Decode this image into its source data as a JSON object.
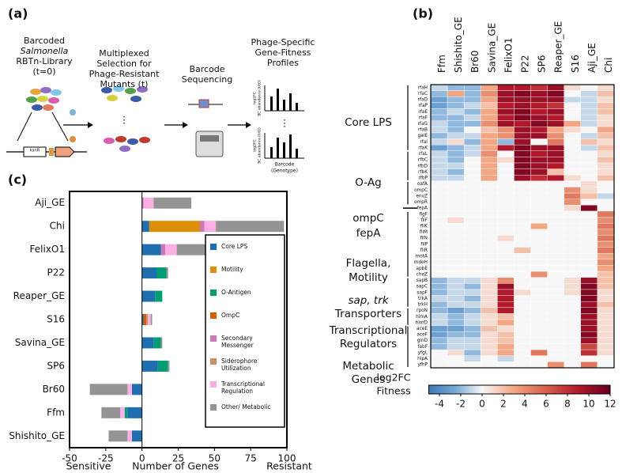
{
  "panel_a": {
    "panel_label": "(a)",
    "step1": [
      "Barcoded",
      "Salmonella",
      "RBTn-Library",
      "(t=0)"
    ],
    "step2": [
      "Multiplexed",
      "Selection for",
      "Phage-Resistant",
      "Mutants (t)"
    ],
    "step3": [
      "Barcode",
      "Sequencing"
    ],
    "step4": [
      "Phage-Specific",
      "Gene-Fitness",
      "Profiles"
    ],
    "plasmid_label": "kanR",
    "mini_axis": [
      "log2FC",
      "BC abundance (t/t0)"
    ],
    "ellipsis": "⋮",
    "mini_xlabel": [
      "Barcode",
      "(Genotype)"
    ]
  },
  "panel_b": {
    "panel_label": "(b)"
  },
  "panel_c": {
    "panel_label": "(c)"
  },
  "chart_data": [
    {
      "type": "heatmap",
      "x": [
        "Ffm",
        "Shishito_GE",
        "Br60",
        "Savina_GE",
        "FelixO1",
        "P22",
        "SP6",
        "Reaper_GE",
        "S16",
        "Aji_GE",
        "Chi"
      ],
      "y": [
        "rfaH",
        "rfaC",
        "rfaD",
        "rfaP",
        "rfaE",
        "rfaF",
        "rfaG",
        "rfaB",
        "galE",
        "rfaI",
        "rfaK",
        "rfaL",
        "rfbC",
        "rfbD",
        "rfbK",
        "rfbP",
        "oafA",
        "ompC",
        "envZ",
        "ompR",
        "fepA",
        "flgF",
        "fliF",
        "fliK",
        "fliM",
        "fliN",
        "fliP",
        "fliR",
        "motA",
        "mdoH",
        "apbE",
        "cheZ",
        "sapB",
        "sapC",
        "sapF",
        "trkA",
        "trkH",
        "rpoN",
        "himA",
        "himD",
        "aceE",
        "aceF",
        "glnD",
        "fabF",
        "yfgL",
        "hlpA",
        "yfhP"
      ],
      "values": [
        [
          -1,
          -2,
          -2,
          3,
          9,
          9,
          8,
          10,
          1,
          0,
          1
        ],
        [
          -2,
          3,
          -2,
          4,
          10,
          11,
          10,
          11,
          0,
          -1,
          2
        ],
        [
          -3,
          -2,
          -2,
          3,
          10,
          10,
          10,
          10,
          -1,
          -1,
          1
        ],
        [
          -3,
          -2,
          -1,
          2,
          9,
          10,
          9,
          8,
          0,
          -1,
          2
        ],
        [
          -2,
          -1,
          -2,
          3,
          10,
          11,
          9,
          10,
          0,
          -1,
          2
        ],
        [
          -2,
          -2,
          -1,
          3,
          9,
          11,
          10,
          9,
          0,
          -1,
          1
        ],
        [
          -1,
          -2,
          -2,
          4,
          10,
          9,
          11,
          10,
          3,
          -1,
          1
        ],
        [
          -1,
          -2,
          0,
          2,
          4,
          10,
          9,
          3,
          1,
          0,
          3
        ],
        [
          -2,
          -1,
          -1,
          3,
          4,
          10,
          10,
          4,
          0,
          -1,
          2
        ],
        [
          -1,
          1,
          -2,
          3,
          -2,
          10,
          0,
          5,
          0,
          2,
          1
        ],
        [
          -3,
          -2,
          -1,
          3,
          9,
          11,
          10,
          10,
          0,
          -1,
          2
        ],
        [
          -1,
          -2,
          -1,
          4,
          0,
          11,
          9,
          10,
          0,
          0,
          1
        ],
        [
          -1,
          -2,
          0,
          3,
          1,
          11,
          10,
          10,
          0,
          0,
          2
        ],
        [
          -1,
          -1,
          0,
          3,
          0,
          11,
          10,
          9,
          0,
          0,
          1
        ],
        [
          -1,
          -2,
          0,
          3,
          0,
          11,
          10,
          2,
          0,
          0,
          1
        ],
        [
          -1,
          -1,
          0,
          3,
          0,
          10,
          8,
          9,
          1,
          0,
          2
        ],
        [
          0,
          0,
          0,
          0,
          0,
          0,
          0,
          0,
          0,
          1,
          0
        ],
        [
          0,
          0,
          0,
          0,
          0,
          0,
          0,
          0,
          4,
          1,
          0
        ],
        [
          0,
          0,
          0,
          0,
          0,
          0,
          0,
          0,
          5,
          2,
          -1
        ],
        [
          0,
          0,
          0,
          0,
          0,
          0,
          0,
          0,
          4,
          0,
          0
        ],
        [
          0,
          0,
          0,
          0,
          0,
          0,
          0,
          0,
          1,
          11,
          0
        ],
        [
          0,
          0,
          0,
          0,
          0,
          0,
          0,
          0,
          0,
          0,
          5
        ],
        [
          0,
          1,
          0,
          0,
          0,
          0,
          0,
          0,
          0,
          0,
          4
        ],
        [
          0,
          0,
          0,
          0,
          0,
          0,
          3,
          0,
          0,
          0,
          5
        ],
        [
          0,
          0,
          0,
          0,
          0,
          0,
          0,
          0,
          0,
          0,
          4
        ],
        [
          0,
          0,
          0,
          0,
          1,
          0,
          0,
          0,
          0,
          0,
          5
        ],
        [
          0,
          0,
          0,
          0,
          0,
          0,
          0,
          0,
          0,
          0,
          4
        ],
        [
          0,
          0,
          0,
          0,
          0,
          2,
          0,
          0,
          0,
          0,
          5
        ],
        [
          0,
          0,
          0,
          0,
          0,
          0,
          0,
          0,
          0,
          0,
          3
        ],
        [
          0,
          0,
          0,
          0,
          0,
          0,
          0,
          0,
          0,
          0,
          4
        ],
        [
          0,
          0,
          0,
          0,
          0,
          0,
          0,
          0,
          0,
          0,
          3
        ],
        [
          0,
          0,
          0,
          0,
          0,
          0,
          4,
          0,
          0,
          0,
          2
        ],
        [
          -2,
          -1,
          -1,
          1,
          4,
          0,
          0,
          0,
          1,
          10,
          2
        ],
        [
          -2,
          -1,
          -2,
          1,
          10,
          0,
          0,
          0,
          1,
          11,
          2
        ],
        [
          -2,
          -1,
          -1,
          1,
          9,
          1,
          0,
          0,
          1,
          11,
          1
        ],
        [
          -1,
          -1,
          -2,
          1,
          9,
          0,
          0,
          0,
          0,
          11,
          1
        ],
        [
          -2,
          -1,
          -1,
          1,
          9,
          0,
          0,
          0,
          0,
          10,
          2
        ],
        [
          -2,
          -3,
          -2,
          2,
          9,
          0,
          0,
          0,
          0,
          11,
          1
        ],
        [
          -1,
          -2,
          -1,
          1,
          2,
          0,
          0,
          0,
          0,
          10,
          1
        ],
        [
          -1,
          -2,
          -1,
          1,
          3,
          0,
          0,
          0,
          0,
          10,
          1
        ],
        [
          -3,
          -3,
          -2,
          2,
          1,
          0,
          0,
          0,
          0,
          10,
          1
        ],
        [
          -3,
          -2,
          -2,
          1,
          2,
          0,
          0,
          0,
          0,
          11,
          1
        ],
        [
          -2,
          -1,
          -1,
          1,
          2,
          0,
          0,
          0,
          0,
          10,
          1
        ],
        [
          -2,
          -1,
          -1,
          1,
          3,
          0,
          0,
          0,
          0,
          7,
          1
        ],
        [
          0,
          1,
          -2,
          1,
          3,
          0,
          5,
          0,
          0,
          8,
          1
        ],
        [
          0,
          0,
          -1,
          0,
          -1,
          0,
          0,
          0,
          0,
          0,
          0
        ],
        [
          0,
          0,
          0,
          0,
          0,
          0,
          0,
          4,
          0,
          5,
          0
        ]
      ],
      "groups": [
        [
          "Core LPS"
        ],
        [
          "O-Ag"
        ],
        [
          "ompC"
        ],
        [
          "fepA"
        ],
        [
          "Flagella,",
          "Motility"
        ],
        [
          "sap, trk",
          "Transporters"
        ],
        [
          "Transcriptional",
          "Regulators"
        ],
        [
          "Metabolic",
          "Genes"
        ]
      ],
      "zlim": [
        -5,
        12
      ],
      "zticks": [
        -4,
        -2,
        0,
        2,
        4,
        6,
        8,
        10,
        12
      ],
      "colormap": "RdBu_r",
      "colorbar_label": [
        "log2FC",
        "Fitness"
      ]
    },
    {
      "type": "stacked_barh",
      "categories": [
        "Aji_GE",
        "Chi",
        "FelixO1",
        "P22",
        "Reaper_GE",
        "S16",
        "Savina_GE",
        "SP6",
        "Br60",
        "Ffm",
        "Shishito_GE"
      ],
      "series": [
        {
          "name": "Core LPS",
          "color": "#1f6fb0",
          "values": [
            0,
            5,
            13,
            10,
            9,
            1,
            8,
            11,
            -7,
            -10,
            -7
          ]
        },
        {
          "name": "Motility",
          "color": "#de8f05",
          "values": [
            0,
            35,
            0,
            0,
            0,
            0,
            0,
            0,
            0,
            0,
            0
          ]
        },
        {
          "name": "O-Antigen",
          "color": "#029e73",
          "values": [
            0,
            0,
            0,
            7,
            5,
            0,
            5,
            7,
            0,
            -2,
            0
          ]
        },
        {
          "name": "OmpC",
          "color": "#d55e00",
          "values": [
            0,
            0,
            0,
            0,
            0,
            2,
            0,
            0,
            0,
            0,
            0
          ]
        },
        {
          "name": "Secondary Messenger",
          "color": "#cc78bc",
          "values": [
            1,
            3,
            3,
            0,
            0,
            0,
            0,
            0,
            0,
            0,
            0
          ]
        },
        {
          "name": "Siderophore Utilization",
          "color": "#ca9161",
          "values": [
            0,
            0,
            0,
            0,
            0,
            1,
            0,
            0,
            0,
            0,
            0
          ]
        },
        {
          "name": "Transcriptional Regulation",
          "color": "#fbafe4",
          "values": [
            7,
            8,
            8,
            0,
            0,
            2,
            0,
            0,
            -3,
            -3,
            -3
          ]
        },
        {
          "name": "Other/ Metabolic",
          "color": "#949494",
          "values": [
            26,
            47,
            46,
            1,
            0,
            1,
            1,
            1,
            -26,
            -13,
            -13
          ]
        }
      ],
      "xlim": [
        -50,
        100
      ],
      "xticks": [
        -50,
        -25,
        0,
        25,
        50,
        75,
        100
      ],
      "xlabel": "Number of Genes",
      "left_annotation": "Sensitive",
      "right_annotation": "Resistant"
    }
  ]
}
